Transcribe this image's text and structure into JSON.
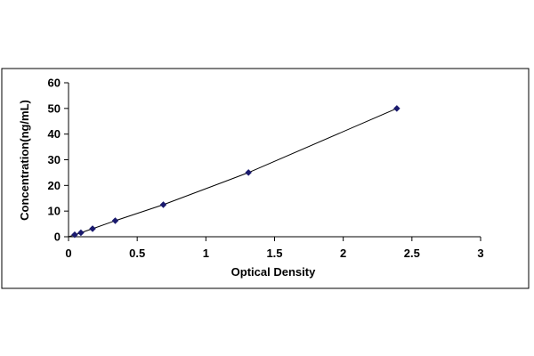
{
  "chart_data": {
    "type": "scatter",
    "title": "",
    "xlabel": "Optical Density",
    "ylabel": "Concentration(ng/mL)",
    "xlim": [
      0,
      3
    ],
    "ylim": [
      0,
      60
    ],
    "xticks": [
      0,
      0.5,
      1,
      1.5,
      2,
      2.5,
      3
    ],
    "yticks": [
      0,
      10,
      20,
      30,
      40,
      50,
      60
    ],
    "grid": false,
    "legend": "none",
    "series": [
      {
        "x": [
          0.045,
          0.09,
          0.175,
          0.34,
          0.69,
          1.31,
          2.39
        ],
        "y": [
          0.78,
          1.56,
          3.13,
          6.25,
          12.5,
          25,
          50
        ],
        "marker": "diamond",
        "fit_line": true
      }
    ],
    "colors": {
      "marker": "#1a1a6e",
      "line": "#000000",
      "frame": "#000000"
    }
  }
}
